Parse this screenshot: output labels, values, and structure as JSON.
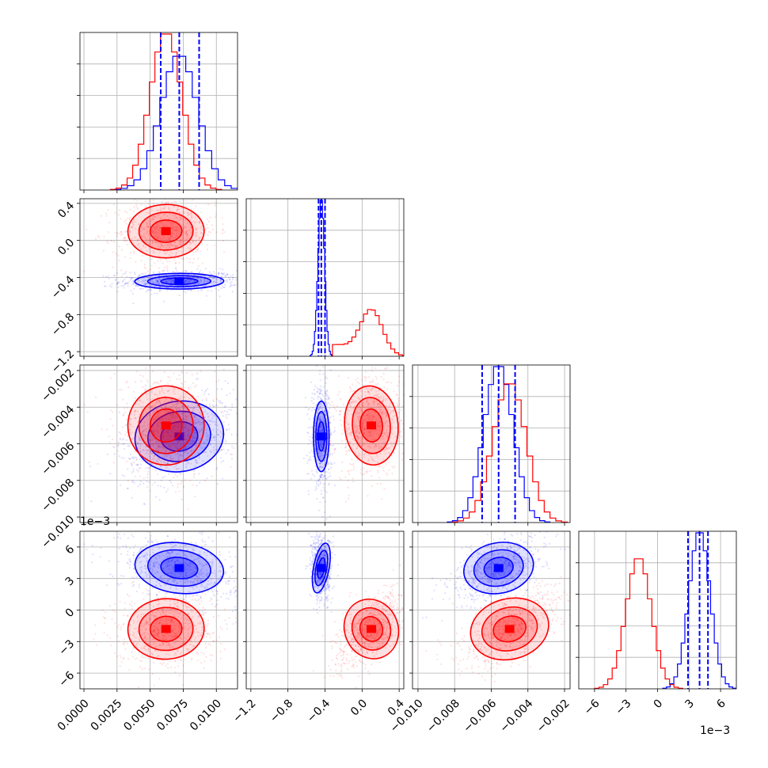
{
  "chart_data": {
    "type": "scatter",
    "subtype": "corner-plot",
    "title": "",
    "grid": true,
    "n_params": 4,
    "colors": {
      "series_a": "#0000ff",
      "series_b": "#ff0000",
      "grid": "#b0b0b0"
    },
    "series": [
      {
        "color": "#0000ff",
        "means": [
          0.0072,
          -0.44,
          -0.0056,
          0.004
        ],
        "stds": [
          0.0014,
          0.035,
          0.0008,
          0.001
        ],
        "quantiles": [
          [
            0.0058,
            0.0072,
            0.0087
          ],
          [
            -0.47,
            -0.44,
            -0.4
          ],
          [
            -0.0065,
            -0.0056,
            -0.0047
          ],
          [
            0.0029,
            0.004,
            0.0048
          ]
        ]
      },
      {
        "color": "#ff0000",
        "means": [
          0.0062,
          0.1,
          -0.005,
          -0.0018
        ],
        "stds": [
          0.0012,
          0.12,
          0.0009,
          0.0012
        ]
      }
    ],
    "axes": [
      {
        "lim": [
          -0.0003,
          0.0116
        ],
        "ticks": [
          0.0,
          0.0025,
          0.005,
          0.0075,
          0.01
        ],
        "ticklabels": [
          "0.0000",
          "0.0025",
          "0.0050",
          "0.0075",
          "0.0100"
        ],
        "offset": ""
      },
      {
        "lim": [
          -1.25,
          0.45
        ],
        "ticks": [
          -1.2,
          -0.8,
          -0.4,
          0.0,
          0.4
        ],
        "ticklabels": [
          "−1.2",
          "−0.8",
          "−0.4",
          "0.0",
          "0.4"
        ],
        "offset": ""
      },
      {
        "lim": [
          -0.0103,
          -0.0017
        ],
        "ticks": [
          -0.01,
          -0.008,
          -0.006,
          -0.004,
          -0.002
        ],
        "ticklabels": [
          "−0.010",
          "−0.008",
          "−0.006",
          "−0.004",
          "−0.002"
        ],
        "offset": ""
      },
      {
        "lim": [
          -0.0075,
          0.0075
        ],
        "ticks": [
          -0.006,
          -0.003,
          0.0,
          0.003,
          0.006
        ],
        "ticklabels": [
          "−6",
          "−3",
          "0",
          "3",
          "6"
        ],
        "offset": "1e−3"
      }
    ],
    "yticklabels": {
      "row1": [
        "−1.2",
        "−0.8",
        "−0.4",
        "0.0",
        "0.4"
      ],
      "row2": [
        "−0.010",
        "−0.008",
        "−0.006",
        "−0.004",
        "−0.002"
      ],
      "row3": [
        "−6",
        "−3",
        "0",
        "3",
        "6"
      ]
    },
    "y_offset_label": "1e−3",
    "x_offset_label": "1e−3"
  }
}
